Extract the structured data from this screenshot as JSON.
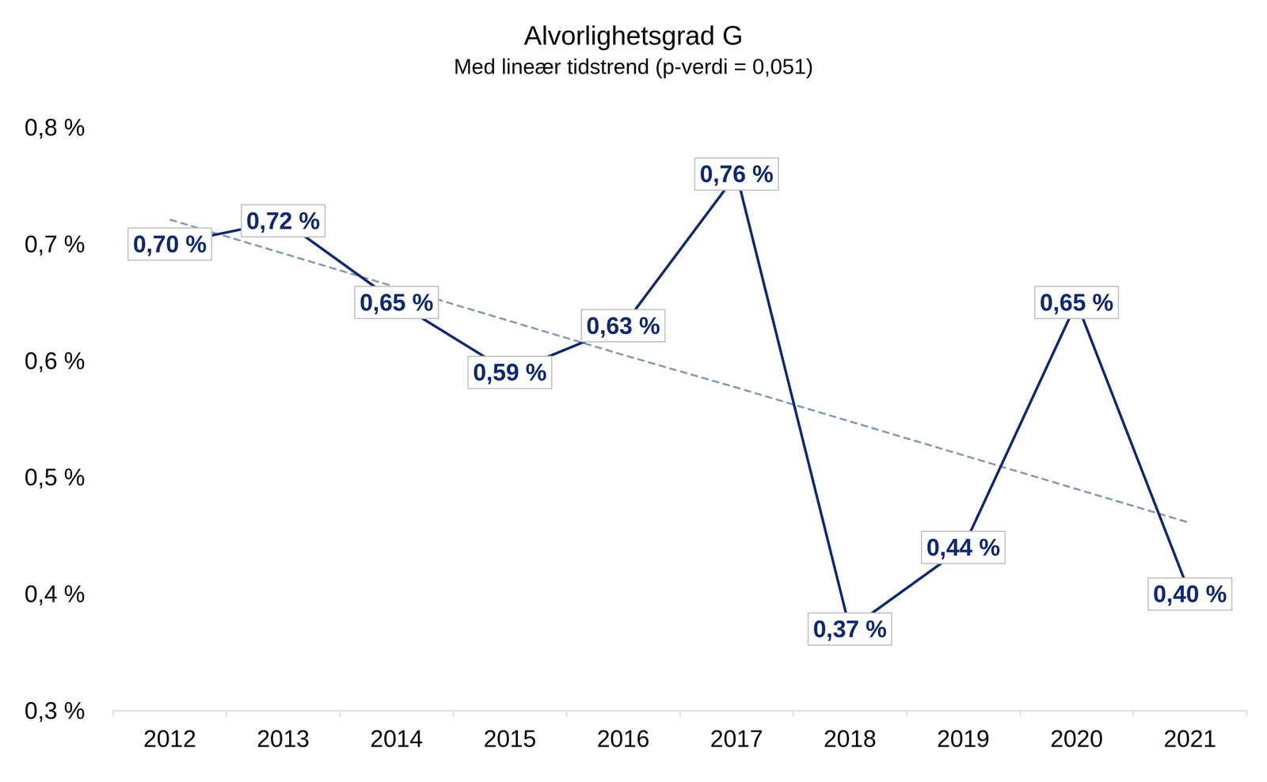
{
  "chart_data": {
    "type": "line",
    "title": "Alvorlighetsgrad G",
    "subtitle": "Med lineær tidstrend (p-verdi = 0,051)",
    "categories": [
      "2012",
      "2013",
      "2014",
      "2015",
      "2016",
      "2017",
      "2018",
      "2019",
      "2020",
      "2021"
    ],
    "series": [
      {
        "values": [
          0.7,
          0.72,
          0.65,
          0.59,
          0.63,
          0.76,
          0.37,
          0.44,
          0.65,
          0.4
        ],
        "value_labels": [
          "0,70 %",
          "0,72 %",
          "0,65 %",
          "0,59 %",
          "0,63 %",
          "0,76 %",
          "0,37 %",
          "0,44 %",
          "0,65 %",
          "0,40 %"
        ],
        "color": "#112a6b",
        "line_style": "solid",
        "data_labels": true
      },
      {
        "values": [
          0.721,
          0.692,
          0.663,
          0.634,
          0.605,
          0.577,
          0.548,
          0.519,
          0.49,
          0.461
        ],
        "color": "#8497b0",
        "line_style": "dashed",
        "data_labels": false
      }
    ],
    "ylim": [
      0.3,
      0.8
    ],
    "yticks": [
      {
        "value": 0.3,
        "label": "0,3 %"
      },
      {
        "value": 0.4,
        "label": "0,4 %"
      },
      {
        "value": 0.5,
        "label": "0,5 %"
      },
      {
        "value": 0.6,
        "label": "0,6 %"
      },
      {
        "value": 0.7,
        "label": "0,7 %"
      },
      {
        "value": 0.8,
        "label": "0,8 %"
      }
    ],
    "grid": false
  }
}
